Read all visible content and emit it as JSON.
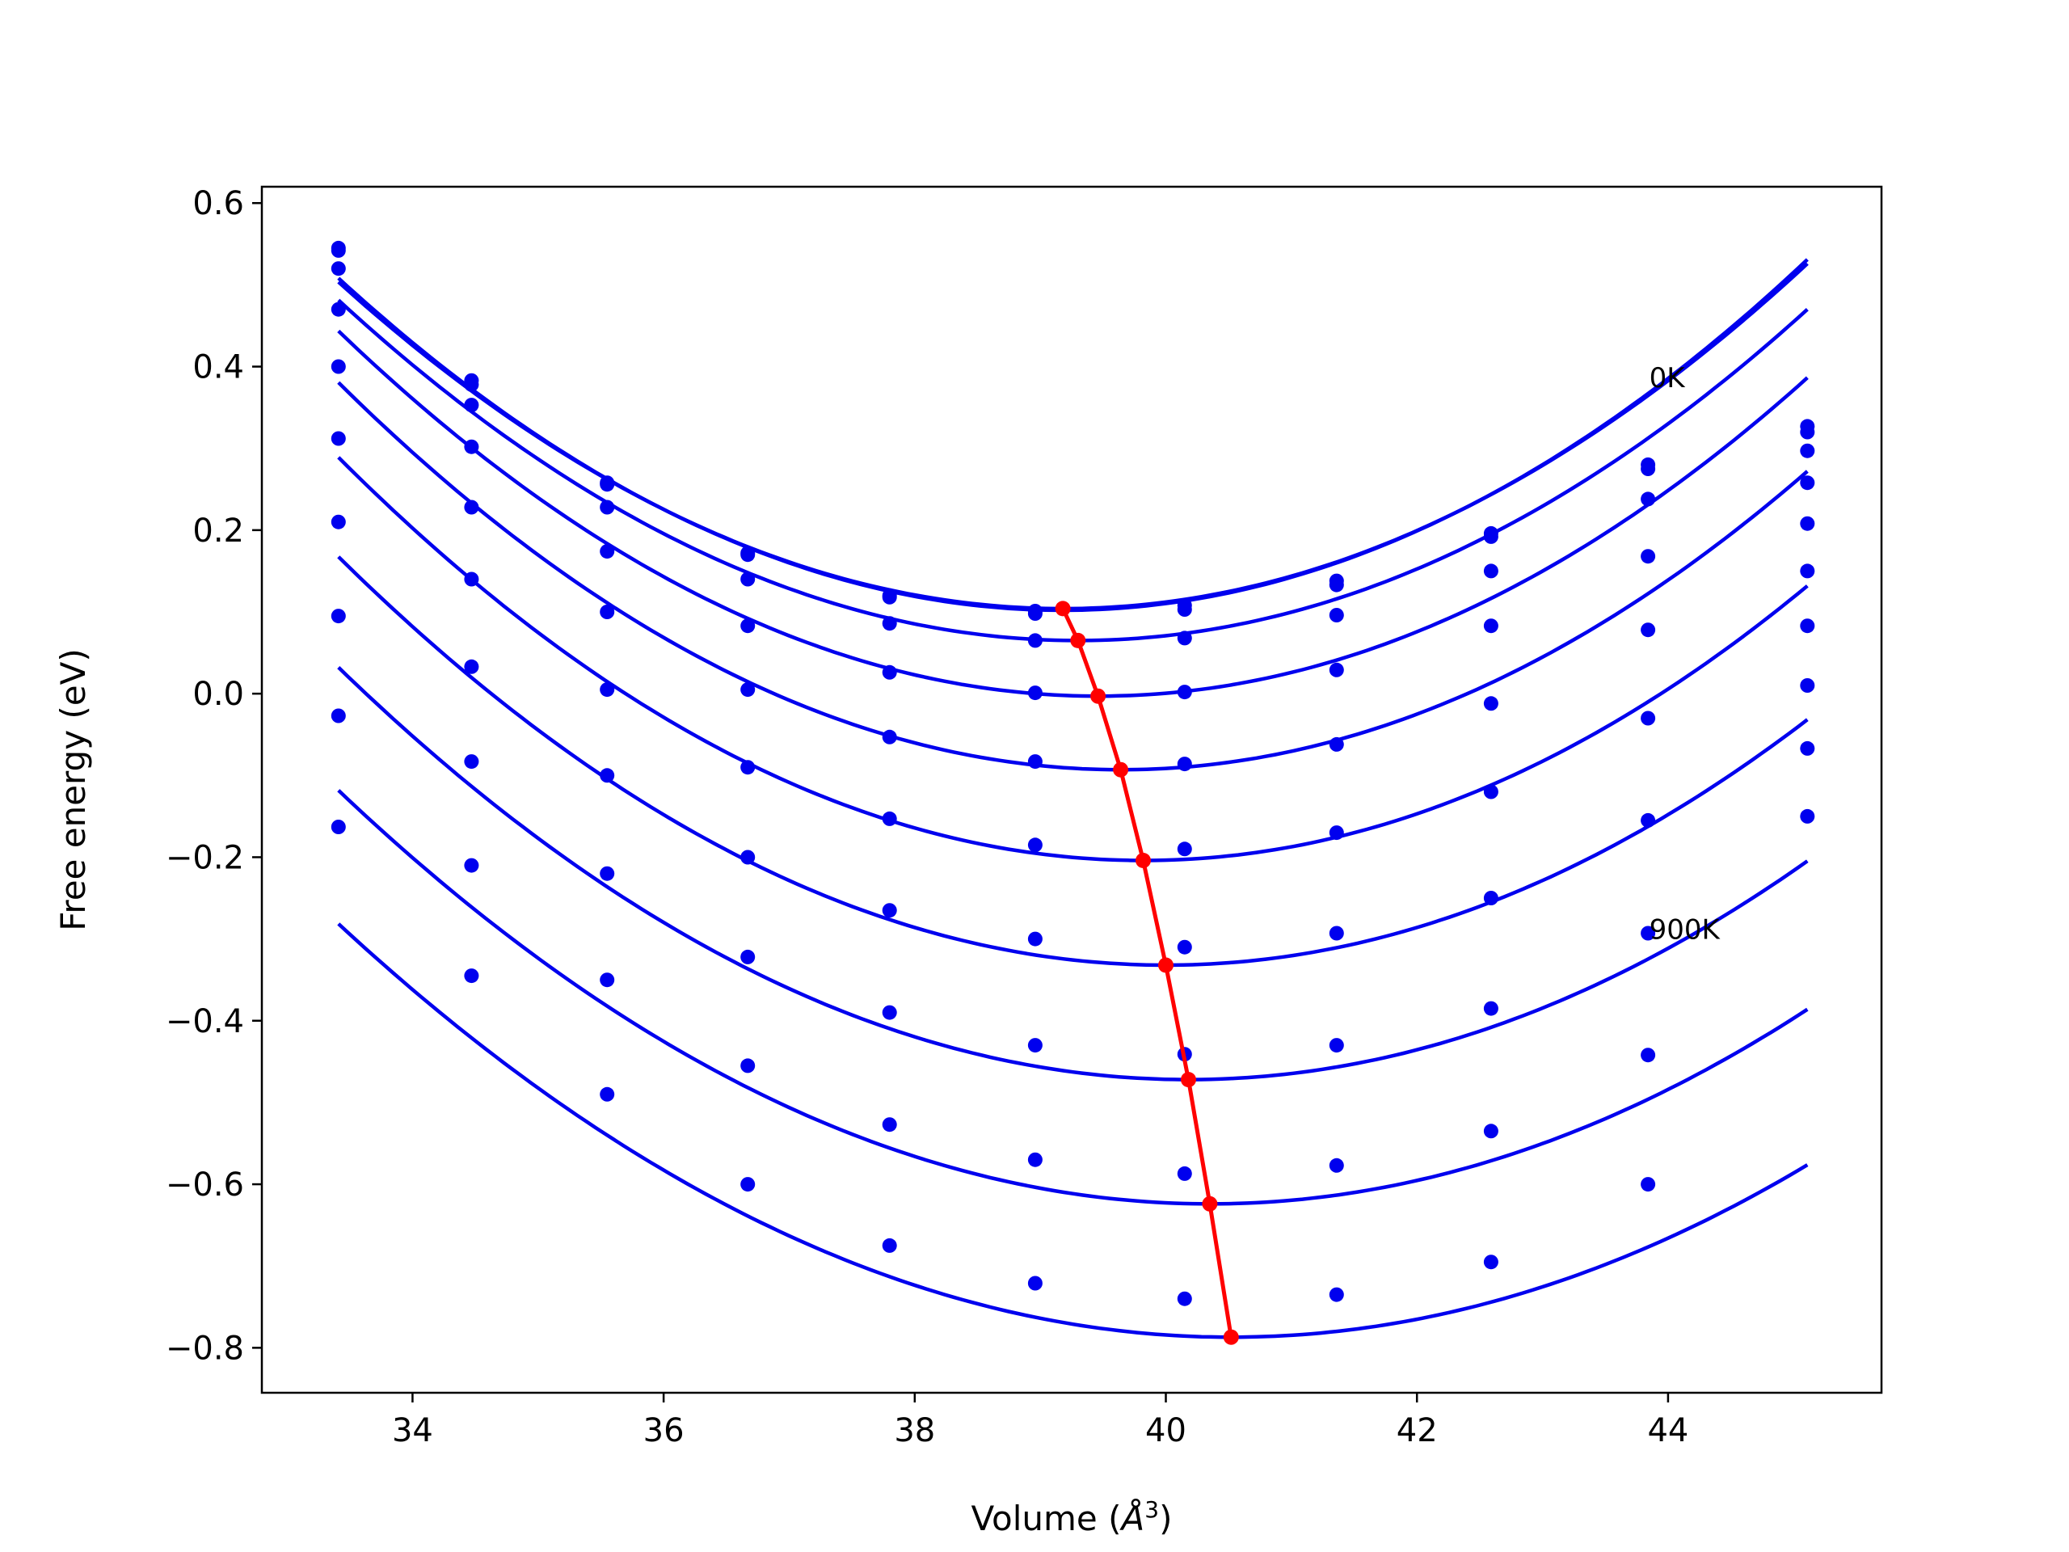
{
  "chart_data": {
    "type": "line",
    "title": "",
    "xlabel": "Volume (",
    "xlabel_unit": "Å",
    "xlabel_exp": "3",
    "xlabel_close": ")",
    "ylabel": "Free energy (eV)",
    "xlim": [
      32.8,
      45.7
    ],
    "ylim": [
      -0.855,
      0.62
    ],
    "xticks": [
      34,
      36,
      38,
      40,
      42,
      44
    ],
    "xtick_labels": [
      "34",
      "36",
      "38",
      "40",
      "42",
      "44"
    ],
    "yticks": [
      0.6,
      0.4,
      0.2,
      0.0,
      -0.2,
      -0.4,
      -0.6,
      -0.8
    ],
    "ytick_labels": [
      "0.6",
      "0.4",
      "0.2",
      "0.0",
      "−0.2",
      "−0.4",
      "−0.6",
      "−0.8"
    ],
    "grid": false,
    "colors": {
      "curves": "#0000ee",
      "points": "#0000ee",
      "minima": "#ff0000",
      "axes": "#000000"
    },
    "annotations": [
      {
        "text": "0K",
        "x": 43.85,
        "y": 0.375
      },
      {
        "text": "900K",
        "x": 43.85,
        "y": -0.3
      }
    ],
    "volumes": [
      33.41,
      34.47,
      35.55,
      36.67,
      37.8,
      38.96,
      40.15,
      41.36,
      42.59,
      43.84,
      45.11
    ],
    "series": [
      {
        "fit": {
          "e0": 0.102,
          "v0": 39.18,
          "b": 0.0122,
          "c": 0.0
        },
        "values": [
          0.545,
          0.383,
          0.258,
          0.172,
          0.12,
          0.101,
          0.108,
          0.138,
          0.196,
          0.28,
          0.327
        ]
      },
      {
        "fit": {
          "e0": 0.104,
          "v0": 39.18,
          "b": 0.012,
          "c": 0.0
        },
        "values": [
          0.542,
          0.378,
          0.256,
          0.17,
          0.118,
          0.098,
          0.103,
          0.133,
          0.192,
          0.275,
          0.32
        ]
      },
      {
        "fit": {
          "e0": 0.065,
          "v0": 39.3,
          "b": 0.012,
          "c": 0.0
        },
        "values": [
          0.52,
          0.353,
          0.228,
          0.14,
          0.086,
          0.065,
          0.068,
          0.096,
          0.15,
          0.238,
          0.297
        ]
      },
      {
        "fit": {
          "e0": -0.003,
          "v0": 39.46,
          "b": 0.0122,
          "c": 0.0
        },
        "values": [
          0.47,
          0.302,
          0.174,
          0.083,
          0.026,
          0.001,
          0.002,
          0.029,
          0.083,
          0.168,
          0.258
        ]
      },
      {
        "fit": {
          "e0": -0.093,
          "v0": 39.64,
          "b": 0.0122,
          "c": 0.0
        },
        "values": [
          0.4,
          0.228,
          0.1,
          0.005,
          -0.053,
          -0.083,
          -0.086,
          -0.062,
          -0.012,
          0.078,
          0.208
        ]
      },
      {
        "fit": {
          "e0": -0.204,
          "v0": 39.82,
          "b": 0.012,
          "c": 0.0
        },
        "values": [
          0.312,
          0.14,
          0.005,
          -0.09,
          -0.153,
          -0.185,
          -0.19,
          -0.17,
          -0.12,
          -0.03,
          0.15
        ]
      },
      {
        "fit": {
          "e0": -0.332,
          "v0": 40.0,
          "b": 0.0115,
          "c": 0.0
        },
        "values": [
          0.21,
          0.033,
          -0.1,
          -0.2,
          -0.265,
          -0.3,
          -0.31,
          -0.293,
          -0.25,
          -0.155,
          0.083
        ]
      },
      {
        "fit": {
          "e0": -0.472,
          "v0": 40.18,
          "b": 0.011,
          "c": 0.0
        },
        "values": [
          0.095,
          -0.083,
          -0.22,
          -0.322,
          -0.39,
          -0.43,
          -0.441,
          -0.43,
          -0.385,
          -0.293,
          0.01
        ]
      },
      {
        "fit": {
          "e0": -0.624,
          "v0": 40.35,
          "b": 0.0105,
          "c": 0.0
        },
        "values": [
          -0.027,
          -0.21,
          -0.35,
          -0.455,
          -0.527,
          -0.57,
          -0.587,
          -0.577,
          -0.535,
          -0.442,
          -0.067
        ]
      },
      {
        "fit": {
          "e0": -0.787,
          "v0": 40.52,
          "b": 0.01,
          "c": 0.0
        },
        "values": [
          -0.163,
          -0.345,
          -0.49,
          -0.6,
          -0.675,
          -0.721,
          -0.74,
          -0.735,
          -0.695,
          -0.6,
          -0.15
        ]
      }
    ],
    "minima": {
      "x": [
        39.18,
        39.3,
        39.46,
        39.64,
        39.82,
        40.0,
        40.18,
        40.35,
        40.52
      ],
      "y": [
        0.104,
        0.065,
        -0.003,
        -0.093,
        -0.204,
        -0.332,
        -0.472,
        -0.624,
        -0.787
      ]
    }
  }
}
